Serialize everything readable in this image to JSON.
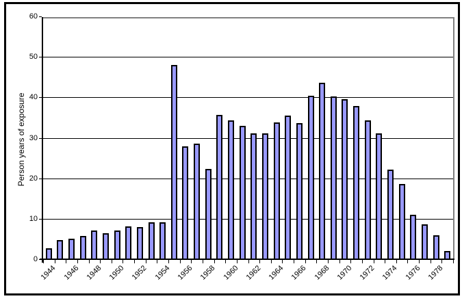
{
  "chart_data": {
    "type": "bar",
    "title": "",
    "xlabel": "",
    "ylabel": "Person years of exposure",
    "ylim": [
      0,
      60
    ],
    "yticks": [
      0,
      10,
      20,
      30,
      40,
      50,
      60
    ],
    "grid": true,
    "legend_position": "none",
    "categories": [
      "1944",
      "1945",
      "1946",
      "1947",
      "1948",
      "1949",
      "1950",
      "1951",
      "1952",
      "1953",
      "1954",
      "1955",
      "1956",
      "1957",
      "1958",
      "1959",
      "1960",
      "1961",
      "1962",
      "1963",
      "1964",
      "1965",
      "1966",
      "1967",
      "1968",
      "1969",
      "1970",
      "1971",
      "1972",
      "1973",
      "1974",
      "1975",
      "1976",
      "1977",
      "1978",
      "1979"
    ],
    "xtick_labels": [
      "1944",
      "1946",
      "1948",
      "1950",
      "1952",
      "1954",
      "1956",
      "1958",
      "1960",
      "1962",
      "1964",
      "1966",
      "1968",
      "1970",
      "1972",
      "1974",
      "1976",
      "1978"
    ],
    "values": [
      2.6,
      4.5,
      4.9,
      5.6,
      6.9,
      6.3,
      6.9,
      7.9,
      7.8,
      9.0,
      9.0,
      47.9,
      27.8,
      28.4,
      22.1,
      35.5,
      34.1,
      32.8,
      31.0,
      31.0,
      33.7,
      35.4,
      33.5,
      40.3,
      43.4,
      40.0,
      39.4,
      37.7,
      34.2,
      31.0,
      22.0,
      18.5,
      10.8,
      8.5,
      5.7,
      1.9
    ],
    "colors": {
      "bar_fill": "#9999FF",
      "bar_border": "#000000",
      "gridline": "#000000",
      "plot_border": "#808080",
      "axis": "#000000",
      "frame_border": "#000000",
      "background": "#FFFFFF"
    }
  }
}
